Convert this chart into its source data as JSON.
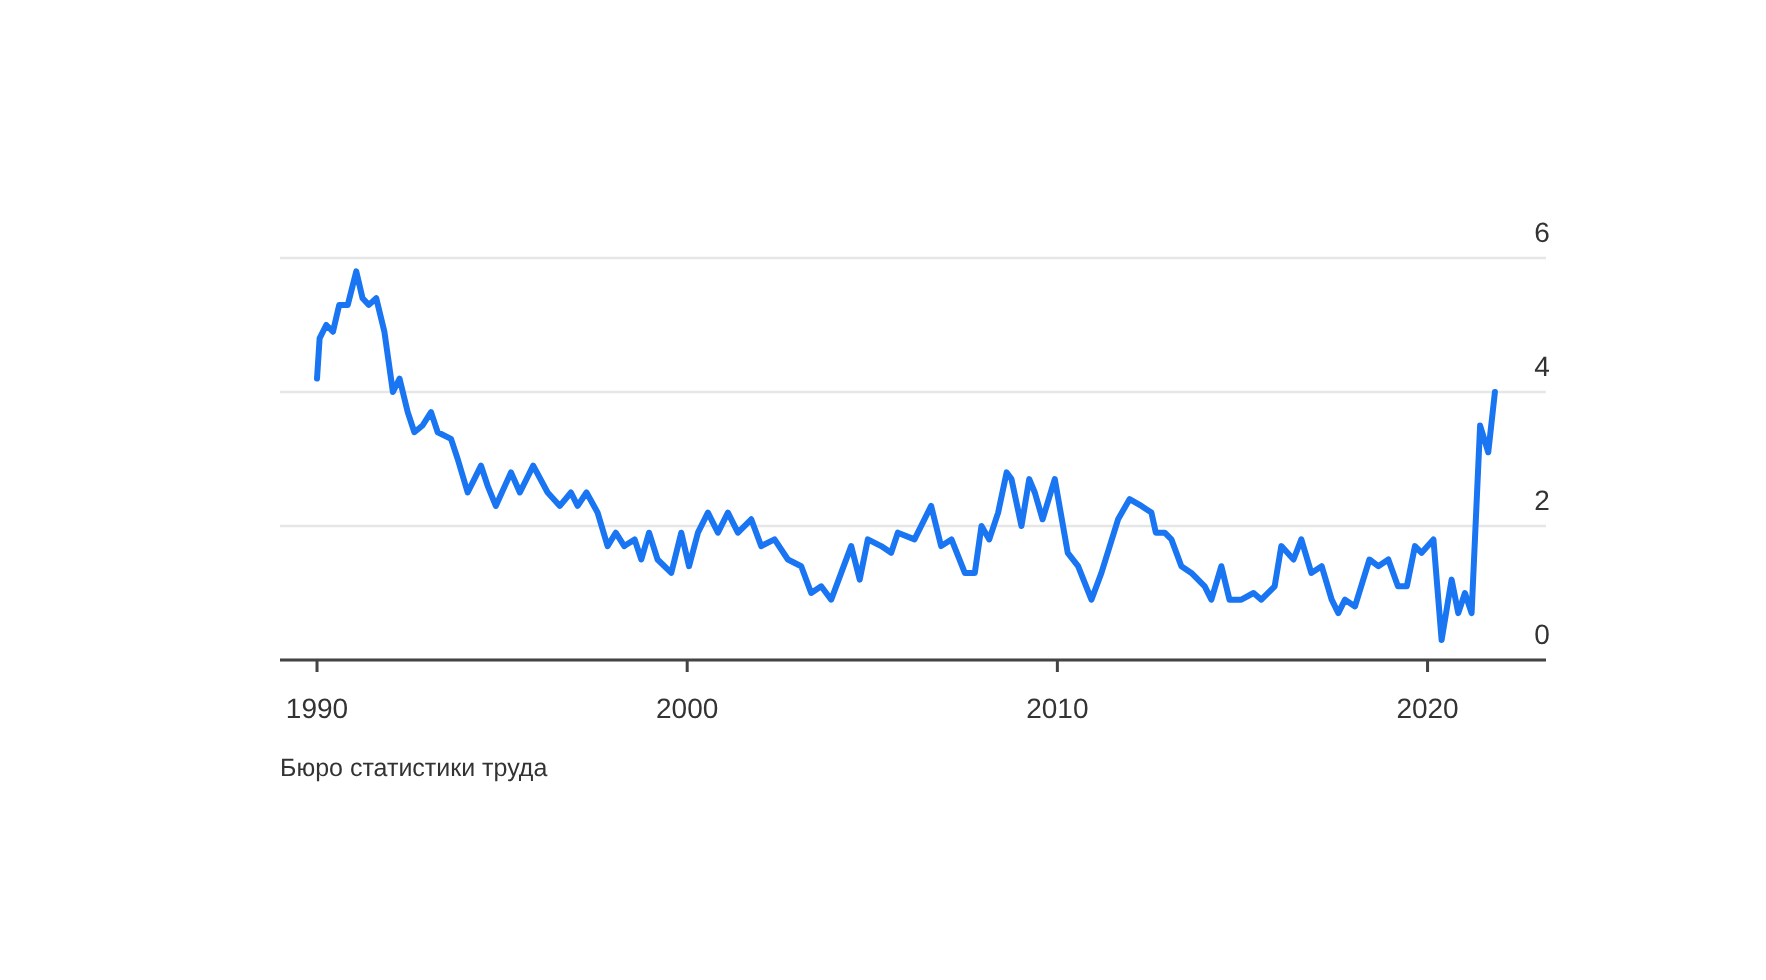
{
  "chart_data": {
    "type": "line",
    "x": [
      1990.0,
      1990.07,
      1990.25,
      1990.43,
      1990.6,
      1990.83,
      1991.06,
      1991.23,
      1991.4,
      1991.6,
      1991.82,
      1992.05,
      1992.23,
      1992.45,
      1992.63,
      1992.85,
      1993.08,
      1993.26,
      1993.62,
      1993.8,
      1994.07,
      1994.25,
      1994.43,
      1994.61,
      1994.83,
      1995.24,
      1995.48,
      1995.84,
      1996.23,
      1996.56,
      1996.86,
      1997.04,
      1997.28,
      1997.58,
      1997.85,
      1998.07,
      1998.3,
      1998.58,
      1998.76,
      1998.97,
      1999.2,
      1999.57,
      1999.84,
      2000.05,
      2000.29,
      2000.56,
      2000.83,
      2001.1,
      2001.37,
      2001.73,
      2002.0,
      2002.36,
      2002.72,
      2003.08,
      2003.35,
      2003.62,
      2003.89,
      2004.16,
      2004.43,
      2004.66,
      2004.88,
      2005.24,
      2005.51,
      2005.69,
      2006.14,
      2006.59,
      2006.86,
      2007.14,
      2007.5,
      2007.77,
      2007.95,
      2008.16,
      2008.4,
      2008.63,
      2008.76,
      2009.03,
      2009.24,
      2009.39,
      2009.6,
      2009.93,
      2010.28,
      2010.56,
      2010.92,
      2011.19,
      2011.64,
      2011.95,
      2012.27,
      2012.54,
      2012.66,
      2012.9,
      2013.08,
      2013.35,
      2013.62,
      2013.98,
      2014.16,
      2014.43,
      2014.65,
      2014.97,
      2015.3,
      2015.51,
      2015.87,
      2016.05,
      2016.38,
      2016.59,
      2016.86,
      2017.14,
      2017.41,
      2017.59,
      2017.77,
      2018.04,
      2018.43,
      2018.67,
      2018.94,
      2019.2,
      2019.44,
      2019.66,
      2019.84,
      2020.16,
      2020.38,
      2020.65,
      2020.83,
      2021.01,
      2021.19,
      2021.42,
      2021.64,
      2021.82
    ],
    "series": [
      {
        "color": "#1a75f2",
        "values": [
          4.2,
          4.8,
          5.0,
          4.9,
          5.3,
          5.3,
          5.8,
          5.4,
          5.3,
          5.4,
          4.9,
          4.0,
          4.2,
          3.7,
          3.4,
          3.5,
          3.7,
          3.4,
          3.3,
          3.0,
          2.5,
          2.7,
          2.9,
          2.6,
          2.3,
          2.8,
          2.5,
          2.9,
          2.5,
          2.3,
          2.5,
          2.3,
          2.5,
          2.2,
          1.7,
          1.9,
          1.7,
          1.8,
          1.5,
          1.9,
          1.5,
          1.3,
          1.9,
          1.4,
          1.9,
          2.2,
          1.9,
          2.2,
          1.9,
          2.1,
          1.7,
          1.8,
          1.5,
          1.4,
          1.0,
          1.1,
          0.9,
          1.3,
          1.7,
          1.2,
          1.8,
          1.7,
          1.6,
          1.9,
          1.8,
          2.3,
          1.7,
          1.8,
          1.3,
          1.3,
          2.0,
          1.8,
          2.2,
          2.8,
          2.7,
          2.0,
          2.7,
          2.5,
          2.1,
          2.7,
          1.6,
          1.4,
          0.9,
          1.3,
          2.1,
          2.4,
          2.3,
          2.2,
          1.9,
          1.9,
          1.8,
          1.4,
          1.3,
          1.1,
          0.9,
          1.4,
          0.9,
          0.9,
          1.0,
          0.9,
          1.1,
          1.7,
          1.5,
          1.8,
          1.3,
          1.4,
          0.9,
          0.7,
          0.9,
          0.8,
          1.5,
          1.4,
          1.5,
          1.1,
          1.1,
          1.7,
          1.6,
          1.8,
          0.3,
          1.2,
          0.7,
          1.0,
          0.7,
          3.5,
          3.1,
          4.0
        ]
      }
    ],
    "xlim": [
      1989.0,
      2023.2
    ],
    "ylim": [
      0,
      6
    ],
    "xticks": [
      1990,
      2000,
      2010,
      2020
    ],
    "yticks": [
      0,
      2,
      4,
      6
    ],
    "grid": "y",
    "marker": "none",
    "line_style": "solid",
    "annotations": [
      "Бюро статистики труда"
    ]
  }
}
